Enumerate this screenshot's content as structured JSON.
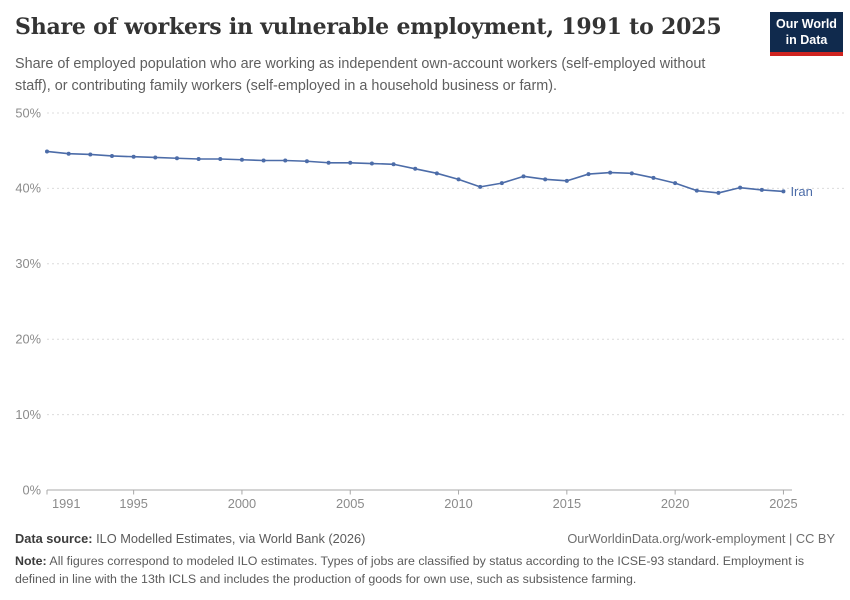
{
  "header": {
    "title": "Share of workers in vulnerable employment, 1991 to 2025",
    "subtitle": "Share of employed population who are working as independent own-account workers (self-employed without staff), or contributing family workers (self-employed in a household business or farm).",
    "logo": {
      "line1": "Our World",
      "line2": "in Data",
      "bg_color": "#102a4d",
      "accent_color": "#cf2420"
    }
  },
  "chart_data": {
    "type": "line",
    "title": "Share of workers in vulnerable employment, 1991 to 2025",
    "xlabel": "",
    "ylabel": "",
    "x": [
      1991,
      1992,
      1993,
      1994,
      1995,
      1996,
      1997,
      1998,
      1999,
      2000,
      2001,
      2002,
      2003,
      2004,
      2005,
      2006,
      2007,
      2008,
      2009,
      2010,
      2011,
      2012,
      2013,
      2014,
      2015,
      2016,
      2017,
      2018,
      2019,
      2020,
      2021,
      2022,
      2023,
      2024,
      2025
    ],
    "series": [
      {
        "name": "Iran",
        "color": "#4C6CA8",
        "values": [
          44.9,
          44.6,
          44.5,
          44.3,
          44.2,
          44.1,
          44.0,
          43.9,
          43.9,
          43.8,
          43.7,
          43.7,
          43.6,
          43.4,
          43.4,
          43.3,
          43.2,
          42.6,
          42.0,
          41.2,
          40.2,
          40.7,
          41.6,
          41.2,
          41.0,
          41.9,
          42.1,
          42.0,
          41.4,
          40.7,
          39.7,
          39.4,
          40.1,
          39.8,
          39.6
        ]
      }
    ],
    "xlim": [
      1991,
      2025
    ],
    "ylim": [
      0,
      50
    ],
    "x_ticks": [
      1991,
      1995,
      2000,
      2005,
      2010,
      2015,
      2020,
      2025
    ],
    "y_ticks": [
      0,
      10,
      20,
      30,
      40,
      50
    ],
    "y_tick_suffix": "%",
    "grid": "horizontal-dashed",
    "legend": "inline-end-label",
    "grid_color": "#dcdcdc",
    "axis_color": "#a8a8a8",
    "tick_label_color": "#8b8b8b"
  },
  "footer": {
    "data_source_label": "Data source:",
    "data_source_value": " ILO Modelled Estimates, via World Bank (2026)",
    "link_text": "OurWorldinData.org/work-employment | CC BY",
    "note_label": "Note:",
    "note_text": " All figures correspond to modeled ILO estimates. Types of jobs are classified by status according to the ICSE-93 standard. Employment is defined in line with the 13th ICLS and includes the production of goods for own use, such as subsistence farming."
  }
}
